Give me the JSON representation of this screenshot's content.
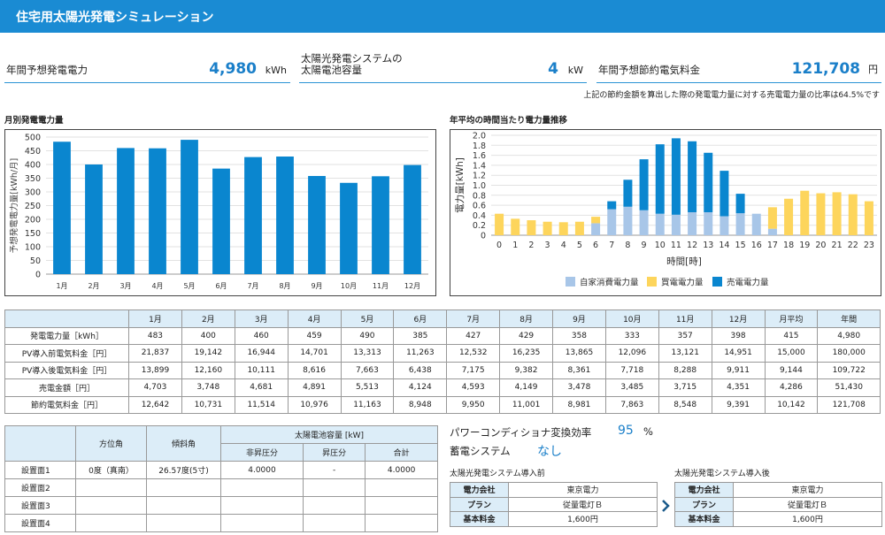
{
  "header": {
    "title": "住宅用太陽光発電シミュレーション"
  },
  "metrics": {
    "annual_gen": {
      "label": "年間予想発電電力",
      "value": "4,980",
      "unit": "kWh"
    },
    "battery": {
      "label_line1": "太陽光発電システムの",
      "label_line2": "太陽電池容量",
      "value": "4",
      "unit": "kW"
    },
    "savings": {
      "label": "年間予想節約電気料金",
      "value": "121,708",
      "unit": "円"
    },
    "note": "上記の節約金額を算出した際の発電電力量に対する売電電力量の比率は64.5%です"
  },
  "chart_titles": {
    "monthly": "月別発電電力量",
    "hourly": "年平均の時間当たり電力量推移"
  },
  "colors": {
    "blue": "#0a86cf",
    "lightblue": "#a8c6e8",
    "yellow": "#fdd55c",
    "header": "#1a8bd3"
  },
  "chart_data": [
    {
      "type": "bar",
      "title": "月別発電電力量",
      "ylabel": "予想発電電力量[kWh/月]",
      "ylim": [
        0,
        500
      ],
      "yticks": [
        0,
        50,
        100,
        150,
        200,
        250,
        300,
        350,
        400,
        450,
        500
      ],
      "categories": [
        "1月",
        "2月",
        "3月",
        "4月",
        "5月",
        "6月",
        "7月",
        "8月",
        "9月",
        "10月",
        "11月",
        "12月"
      ],
      "values": [
        483,
        400,
        460,
        459,
        490,
        385,
        427,
        429,
        358,
        333,
        357,
        398
      ]
    },
    {
      "type": "bar",
      "title": "年平均の時間当たり電力量推移",
      "xlabel": "時間[時]",
      "ylabel": "電力量[kWh]",
      "ylim": [
        0,
        2.0
      ],
      "yticks": [
        "0",
        "0.2",
        "0.4",
        "0.6",
        "0.8",
        "1.0",
        "1.2",
        "1.4",
        "1.6",
        "1.8",
        "2.0"
      ],
      "categories": [
        "0",
        "1",
        "2",
        "3",
        "4",
        "5",
        "6",
        "7",
        "8",
        "9",
        "10",
        "11",
        "12",
        "13",
        "14",
        "15",
        "16",
        "17",
        "18",
        "19",
        "20",
        "21",
        "22",
        "23"
      ],
      "series": [
        {
          "name": "自家消費電力量",
          "values": [
            0,
            0,
            0,
            0,
            0,
            0,
            0.24,
            0.52,
            0.57,
            0.5,
            0.43,
            0.41,
            0.46,
            0.46,
            0.38,
            0.44,
            0.43,
            0.13,
            0,
            0,
            0,
            0,
            0,
            0
          ]
        },
        {
          "name": "買電電力量",
          "values": [
            0.43,
            0.33,
            0.3,
            0.27,
            0.26,
            0.27,
            0.13,
            0,
            0,
            0,
            0,
            0,
            0,
            0,
            0,
            0,
            0,
            0.43,
            0.73,
            0.89,
            0.84,
            0.86,
            0.82,
            0.68
          ]
        },
        {
          "name": "売電電力量",
          "values": [
            0,
            0,
            0,
            0,
            0,
            0,
            0,
            0.16,
            0.54,
            1.02,
            1.39,
            1.53,
            1.42,
            1.19,
            0.91,
            0.39,
            0,
            0,
            0,
            0,
            0,
            0,
            0,
            0
          ]
        }
      ],
      "legend": "bottom"
    }
  ],
  "table": {
    "headers": [
      "",
      "1月",
      "2月",
      "3月",
      "4月",
      "5月",
      "6月",
      "7月",
      "8月",
      "9月",
      "10月",
      "11月",
      "12月",
      "月平均",
      "年間"
    ],
    "rows": [
      [
        "発電電力量［kWh］",
        "483",
        "400",
        "460",
        "459",
        "490",
        "385",
        "427",
        "429",
        "358",
        "333",
        "357",
        "398",
        "415",
        "4,980"
      ],
      [
        "PV導入前電気料金［円］",
        "21,837",
        "19,142",
        "16,944",
        "14,701",
        "13,313",
        "11,263",
        "12,532",
        "16,235",
        "13,865",
        "12,096",
        "13,121",
        "14,951",
        "15,000",
        "180,000"
      ],
      [
        "PV導入後電気料金［円］",
        "13,899",
        "12,160",
        "10,111",
        "8,616",
        "7,663",
        "6,438",
        "7,175",
        "9,382",
        "8,361",
        "7,718",
        "8,288",
        "9,911",
        "9,144",
        "109,722"
      ],
      [
        "売電金額［円］",
        "4,703",
        "3,748",
        "4,681",
        "4,891",
        "5,513",
        "4,124",
        "4,593",
        "4,149",
        "3,478",
        "3,485",
        "3,715",
        "4,351",
        "4,286",
        "51,430"
      ],
      [
        "節約電気料金［円］",
        "12,642",
        "10,731",
        "11,514",
        "10,976",
        "11,163",
        "8,948",
        "9,950",
        "11,001",
        "8,981",
        "7,863",
        "8,548",
        "9,391",
        "10,142",
        "121,708"
      ]
    ]
  },
  "surfaces": {
    "h_dir": "方位角",
    "h_tilt": "傾斜角",
    "h_cap": "太陽電池容量 [kW]",
    "h_nonboost": "非昇圧分",
    "h_boost": "昇圧分",
    "h_total": "合計",
    "rows": [
      {
        "name": "設置面1",
        "dir": "0度（真南）",
        "tilt": "26.57度(5寸)",
        "nonboost": "4.0000",
        "boost": "-",
        "total": "4.0000"
      },
      {
        "name": "設置面2",
        "dir": "",
        "tilt": "",
        "nonboost": "",
        "boost": "",
        "total": ""
      },
      {
        "name": "設置面3",
        "dir": "",
        "tilt": "",
        "nonboost": "",
        "boost": "",
        "total": ""
      },
      {
        "name": "設置面4",
        "dir": "",
        "tilt": "",
        "nonboost": "",
        "boost": "",
        "total": ""
      }
    ]
  },
  "system": {
    "pcs_label": "パワーコンディショナ変換効率",
    "pcs_value": "95",
    "pcs_unit": "%",
    "storage_label": "蓄電システム",
    "storage_value": "なし",
    "before_title": "太陽光発電システム導入前",
    "after_title": "太陽光発電システム導入後",
    "k_company": "電力会社",
    "k_plan": "プラン",
    "k_base": "基本料金",
    "before": {
      "company": "東京電力",
      "plan": "従量電灯Ｂ",
      "base": "1,600円"
    },
    "after": {
      "company": "東京電力",
      "plan": "従量電灯Ｂ",
      "base": "1,600円"
    }
  }
}
